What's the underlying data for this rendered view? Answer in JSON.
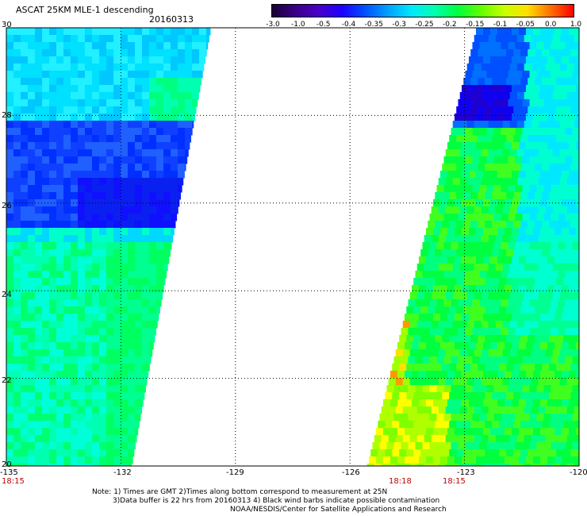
{
  "header": {
    "title": "ASCAT 25KM MLE-1 descending",
    "date": "20160313"
  },
  "colorbar": {
    "labels": [
      "-3.0",
      "-1.0",
      "-0.5",
      "-0.4",
      "-0.35",
      "-0.3",
      "-0.25",
      "-0.2",
      "-0.15",
      "-0.1",
      "-0.05",
      "0.0",
      "1.0"
    ],
    "colors": [
      "#1a0033",
      "#3a0088",
      "#4a00c8",
      "#1e00ff",
      "#0050ff",
      "#00a0ff",
      "#00e8ff",
      "#00ffb0",
      "#00ff40",
      "#60ff00",
      "#c8ff00",
      "#ffe000",
      "#ff7000",
      "#ff0000"
    ]
  },
  "axes": {
    "lon_labels": [
      "-135",
      "-132",
      "-129",
      "-126",
      "-123",
      "-120"
    ],
    "lat_labels": [
      "30",
      "28",
      "26",
      "24",
      "22",
      "20"
    ],
    "lon_range": [
      -135,
      -120
    ],
    "lat_range": [
      20,
      30
    ]
  },
  "times": {
    "left": "18:15",
    "mid1": "18:18",
    "mid2": "18:15"
  },
  "notes": {
    "line1": "Note: 1) Times are GMT 2)Times along bottom correspond to measurement at 25N",
    "line2": "3)Data buffer is 22 hrs from 20160313 4) Black wind barbs indicate possible contamination",
    "line3": "NOAA/NESDIS/Center for Satellite Applications and Research"
  }
}
